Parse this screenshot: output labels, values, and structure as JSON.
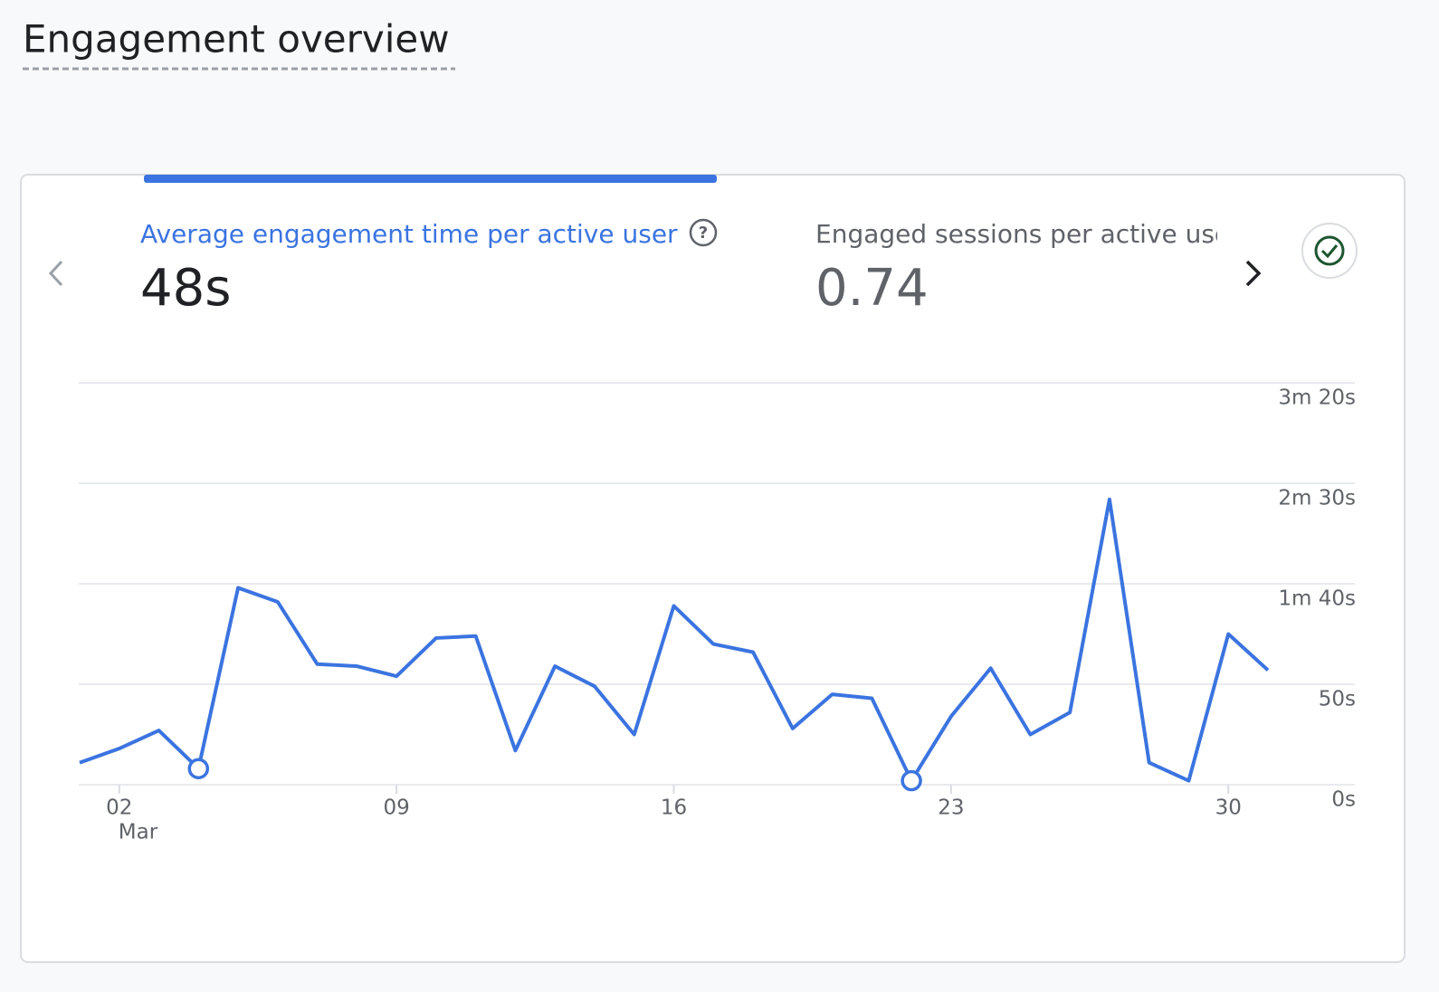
{
  "header": {
    "title": "Engagement overview"
  },
  "metrics": [
    {
      "label": "Average engagement time per active user",
      "value": "48s"
    },
    {
      "label": "Engaged sessions per active user",
      "value": "0.74"
    }
  ],
  "chart_data": {
    "type": "line",
    "x": [
      1,
      2,
      3,
      4,
      5,
      6,
      7,
      8,
      9,
      10,
      11,
      12,
      13,
      14,
      15,
      16,
      17,
      18,
      19,
      20,
      21,
      22,
      23,
      24,
      25,
      26,
      27,
      28,
      29,
      30,
      31
    ],
    "series": [
      {
        "name": "Average engagement time per active user",
        "color": "#3b74e0",
        "values": [
          11,
          18,
          27,
          8,
          98,
          91,
          60,
          59,
          54,
          73,
          74,
          17,
          59,
          49,
          25,
          89,
          70,
          66,
          28,
          45,
          43,
          2,
          34,
          58,
          25,
          36,
          142,
          11,
          2,
          75,
          57
        ]
      }
    ],
    "xlim": [
      1,
      31
    ],
    "xticks": [
      {
        "value": 2,
        "label": "02"
      },
      {
        "value": 9,
        "label": "09"
      },
      {
        "value": 16,
        "label": "16"
      },
      {
        "value": 23,
        "label": "23"
      },
      {
        "value": 30,
        "label": "30"
      }
    ],
    "x_month_label": "Mar",
    "ylim": [
      0,
      200
    ],
    "yticks": [
      {
        "value": 0,
        "label": "0s"
      },
      {
        "value": 50,
        "label": "50s"
      },
      {
        "value": 100,
        "label": "1m 40s"
      },
      {
        "value": 150,
        "label": "2m 30s"
      },
      {
        "value": 200,
        "label": "3m 20s"
      }
    ],
    "grid": true,
    "highlighted_x": [
      4,
      22
    ]
  }
}
